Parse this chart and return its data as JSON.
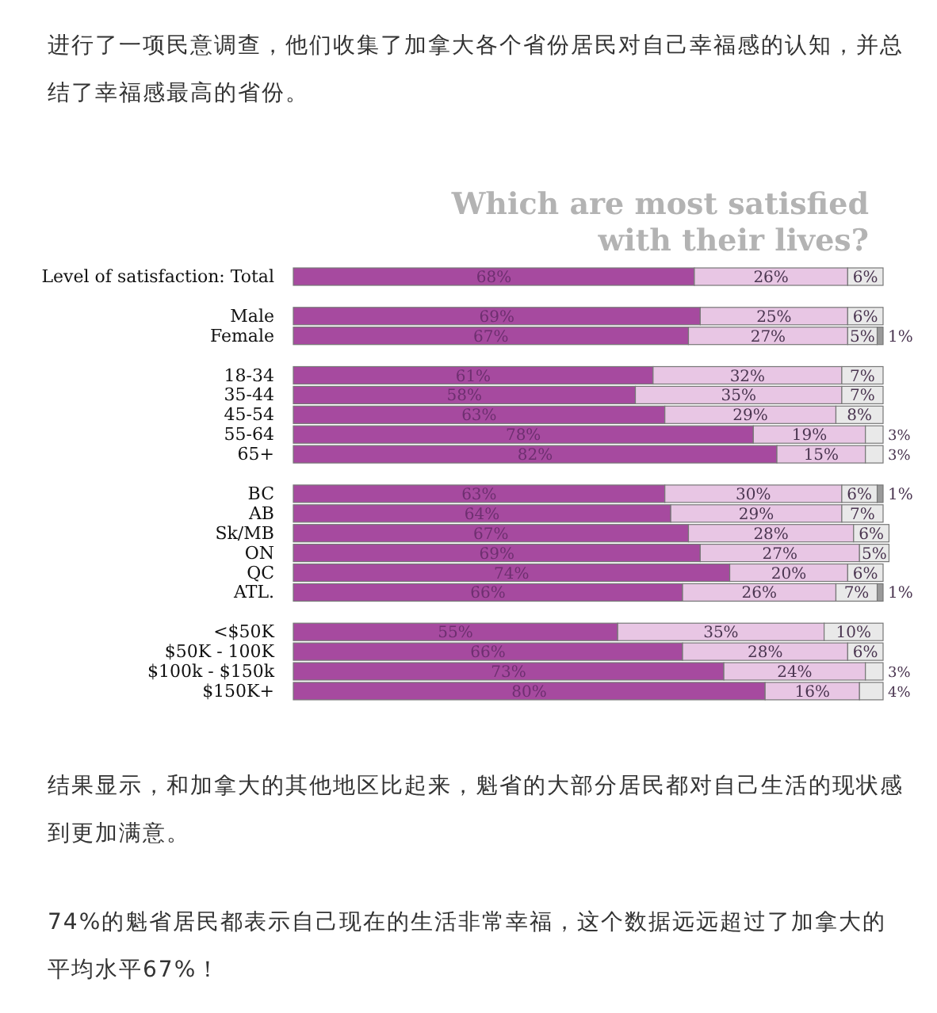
{
  "chart_data": {
    "type": "bar",
    "orientation": "horizontal",
    "stacked": true,
    "title": "Which are most satisfied\nwith their lives?",
    "annotations": [
      "进行了一项民意调查，他们收集了加拿大各个省份居民对自己幸福感的认知，并总结了幸福感最高的省份。",
      "结果显示，和加拿大的其他地区比起来，魁省的大部分居民都对自己生活的现状感到更加满意。",
      "74%的魁省居民都表示自己现在的生活非常幸福，这个数据远远超过了加拿大的平均水平67%！"
    ],
    "categories": [
      "Level of satisfaction: Total",
      null,
      "Male",
      "Female",
      null,
      "18-34",
      "35-44",
      "45-54",
      "55-64",
      "65+",
      null,
      "BC",
      "AB",
      "Sk/MB",
      "ON",
      "QC",
      "ATL.",
      null,
      "<$50K",
      "$50K - 100K",
      "$100k - $150k",
      "$150K+"
    ],
    "series": [
      {
        "color": "#a64a9f",
        "values": [
          68,
          null,
          69,
          67,
          null,
          61,
          58,
          63,
          78,
          82,
          null,
          63,
          64,
          67,
          69,
          74,
          66,
          null,
          55,
          66,
          73,
          80
        ],
        "value_labels": [
          "68%",
          null,
          "69%",
          "67%",
          null,
          "61%",
          "58%",
          "63%",
          "78%",
          "82%",
          null,
          "63%",
          "64%",
          "67%",
          "69%",
          "74%",
          "66%",
          null,
          "55%",
          "66%",
          "73%",
          "80%"
        ]
      },
      {
        "color": "#e8c6e4",
        "values": [
          26,
          null,
          25,
          27,
          null,
          32,
          35,
          29,
          19,
          15,
          null,
          30,
          29,
          28,
          27,
          20,
          26,
          null,
          35,
          28,
          24,
          16
        ],
        "value_labels": [
          "26%",
          null,
          "25%",
          "27%",
          null,
          "32%",
          "35%",
          "29%",
          "19%",
          "15%",
          null,
          "30%",
          "29%",
          "28%",
          "27%",
          "20%",
          "26%",
          null,
          "35%",
          "28%",
          "24%",
          "16%"
        ]
      },
      {
        "color": "#e9e9e9",
        "values": [
          6,
          null,
          6,
          5,
          null,
          7,
          7,
          8,
          3,
          3,
          null,
          6,
          7,
          6,
          5,
          6,
          7,
          null,
          10,
          6,
          3,
          4
        ],
        "value_labels": [
          "6%",
          null,
          "6%",
          "5%",
          null,
          "7%",
          "7%",
          "8%",
          "3%",
          "3%",
          null,
          "6%",
          "7%",
          "6%",
          "5%",
          "6%",
          "7%",
          null,
          "10%",
          "6%",
          "3%",
          "4%"
        ]
      },
      {
        "color": "#9a9a9a",
        "values": [
          null,
          null,
          null,
          1,
          null,
          null,
          null,
          null,
          null,
          null,
          null,
          1,
          null,
          null,
          null,
          null,
          1,
          null,
          null,
          null,
          null,
          null
        ],
        "value_labels": [
          null,
          null,
          null,
          "1%",
          null,
          null,
          null,
          null,
          null,
          null,
          null,
          "1%",
          null,
          null,
          null,
          null,
          "1%",
          null,
          null,
          null,
          null,
          null
        ]
      }
    ]
  }
}
